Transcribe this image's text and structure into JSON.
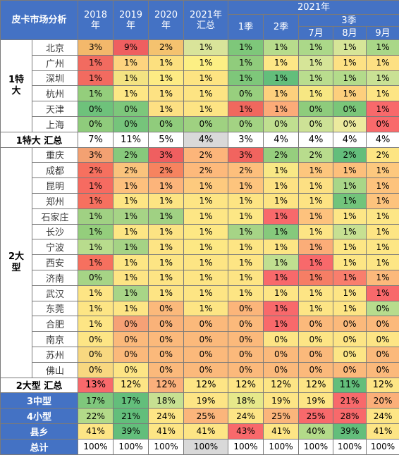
{
  "chart_data": {
    "type": "table",
    "title": "皮卡市场分析",
    "header": {
      "corner": "皮卡市场分析",
      "year_cols": [
        "2018\n年",
        "2019\n年",
        "2020\n年",
        "2021年\n汇总"
      ],
      "group_2021": "2021年",
      "q1": "1季",
      "q2": "2季",
      "q3": "3季",
      "months": [
        "7月",
        "8月",
        "9月"
      ]
    },
    "rows": [
      {
        "group": "1特\n大",
        "group_span": 6,
        "label": "北京",
        "values": [
          "3%",
          "9%",
          "2%",
          "1%",
          "1%",
          "1%",
          "1%",
          "1%",
          "1%"
        ],
        "colors": [
          "#f3b86b",
          "#ef5f60",
          "#f4c26f",
          "#d9e49a",
          "#7ec77a",
          "#b7dc8c",
          "#abd889",
          "#d6e598",
          "#a9d788"
        ]
      },
      {
        "label": "广州",
        "values": [
          "1%",
          "1%",
          "1%",
          "1%",
          "1%",
          "1%",
          "1%",
          "1%",
          "1%"
        ],
        "colors": [
          "#f26b60",
          "#fdd47f",
          "#fce07f",
          "#fcef84",
          "#90cc7c",
          "#fde786",
          "#d6e598",
          "#fde184",
          "#fde083"
        ]
      },
      {
        "label": "深圳",
        "values": [
          "1%",
          "1%",
          "1%",
          "1%",
          "1%",
          "1%",
          "1%",
          "1%",
          "1%"
        ],
        "colors": [
          "#f26b60",
          "#f3e382",
          "#fdeb84",
          "#fde482",
          "#7ec77a",
          "#63be7b",
          "#b9dd8e",
          "#b3db8b",
          "#c9e194"
        ]
      },
      {
        "label": "杭州",
        "values": [
          "1%",
          "1%",
          "1%",
          "1%",
          "0%",
          "1%",
          "1%",
          "1%",
          "1%"
        ],
        "colors": [
          "#94ce7c",
          "#fde785",
          "#fde283",
          "#fde483",
          "#98cf7e",
          "#fdd07d",
          "#f7e783",
          "#fdcf7d",
          "#fde584"
        ]
      },
      {
        "label": "天津",
        "values": [
          "0%",
          "0%",
          "1%",
          "1%",
          "1%",
          "1%",
          "0%",
          "0%",
          "1%"
        ],
        "colors": [
          "#6ec27b",
          "#7dc77b",
          "#fde083",
          "#fde484",
          "#f0685e",
          "#fcab78",
          "#8ecc7c",
          "#7ac679",
          "#f8696b"
        ]
      },
      {
        "label": "上海",
        "values": [
          "0%",
          "0%",
          "0%",
          "0%",
          "0%",
          "0%",
          "0%",
          "0%",
          "0%"
        ],
        "colors": [
          "#8fcc7c",
          "#76c47b",
          "#90cc7c",
          "#9fd181",
          "#a3d383",
          "#c0df90",
          "#cde296",
          "#ecea9e",
          "#f96a6b"
        ]
      },
      {
        "label": "1特大 汇总",
        "sum": true,
        "values": [
          "7%",
          "11%",
          "5%",
          "4%",
          "3%",
          "4%",
          "4%",
          "4%",
          "4%"
        ],
        "colors": [
          "#ffffff",
          "#ffffff",
          "#ffffff",
          "#d9d9d9",
          "#ffffff",
          "#ffffff",
          "#ffffff",
          "#ffffff",
          "#ffffff"
        ]
      },
      {
        "group": "2大\n型",
        "group_span": 15,
        "label": "重庆",
        "values": [
          "3%",
          "2%",
          "3%",
          "2%",
          "3%",
          "2%",
          "2%",
          "2%",
          "2%"
        ],
        "colors": [
          "#f3a172",
          "#87c97c",
          "#ef5f60",
          "#fcb57a",
          "#f1645f",
          "#96ce7e",
          "#b8dc8d",
          "#63be7b",
          "#fde583"
        ]
      },
      {
        "label": "成都",
        "values": [
          "2%",
          "2%",
          "2%",
          "2%",
          "2%",
          "1%",
          "1%",
          "1%",
          "1%"
        ],
        "colors": [
          "#f6705f",
          "#fac37c",
          "#f6835f",
          "#fdb97b",
          "#fdbf7c",
          "#f9e885",
          "#fdc67d",
          "#fdbf7b",
          "#fdc87e"
        ]
      },
      {
        "label": "昆明",
        "values": [
          "1%",
          "1%",
          "1%",
          "1%",
          "1%",
          "1%",
          "1%",
          "1%",
          "1%"
        ],
        "colors": [
          "#f66b61",
          "#fdc07d",
          "#fcb47a",
          "#fdca7e",
          "#fdc47d",
          "#fde283",
          "#fde083",
          "#a9d688",
          "#fdc37d"
        ]
      },
      {
        "label": "郑州",
        "values": [
          "1%",
          "1%",
          "1%",
          "1%",
          "1%",
          "1%",
          "1%",
          "1%",
          "1%"
        ],
        "colors": [
          "#f6705f",
          "#fde684",
          "#fde483",
          "#fde584",
          "#fde483",
          "#fde483",
          "#fde383",
          "#72c47b",
          "#fdc37d"
        ]
      },
      {
        "label": "石家庄",
        "values": [
          "1%",
          "1%",
          "1%",
          "1%",
          "1%",
          "1%",
          "1%",
          "1%",
          "1%"
        ],
        "colors": [
          "#a0d183",
          "#a6d486",
          "#a0d183",
          "#fde685",
          "#fde785",
          "#f8696b",
          "#fdc27d",
          "#fde686",
          "#fde686"
        ]
      },
      {
        "label": "长沙",
        "values": [
          "1%",
          "1%",
          "1%",
          "1%",
          "1%",
          "1%",
          "1%",
          "1%",
          "1%"
        ],
        "colors": [
          "#94ce7c",
          "#fde684",
          "#fce383",
          "#fde884",
          "#a6d486",
          "#86c97c",
          "#fde585",
          "#c7e092",
          "#fde584"
        ]
      },
      {
        "label": "宁波",
        "values": [
          "1%",
          "1%",
          "1%",
          "1%",
          "1%",
          "1%",
          "1%",
          "1%",
          "1%"
        ],
        "colors": [
          "#b8dc8d",
          "#a5d385",
          "#fde484",
          "#fde884",
          "#fde584",
          "#fde584",
          "#fbad78",
          "#fde685",
          "#fde685"
        ]
      },
      {
        "label": "西安",
        "values": [
          "1%",
          "1%",
          "1%",
          "1%",
          "1%",
          "1%",
          "1%",
          "1%",
          "1%"
        ],
        "colors": [
          "#f6705f",
          "#fde684",
          "#fde584",
          "#fde584",
          "#fde584",
          "#c0df90",
          "#f8696b",
          "#fde685",
          "#fde685"
        ]
      },
      {
        "label": "济南",
        "values": [
          "0%",
          "1%",
          "1%",
          "1%",
          "1%",
          "1%",
          "1%",
          "1%",
          "1%"
        ],
        "colors": [
          "#a6d486",
          "#fde484",
          "#fde484",
          "#fde584",
          "#fde484",
          "#f8696b",
          "#f67e65",
          "#f97e6d",
          "#fcb97b"
        ]
      },
      {
        "label": "武汉",
        "values": [
          "1%",
          "1%",
          "1%",
          "1%",
          "1%",
          "1%",
          "1%",
          "1%",
          "1%"
        ],
        "colors": [
          "#fde585",
          "#a8d587",
          "#fde484",
          "#fde584",
          "#fde584",
          "#fde585",
          "#fde585",
          "#fde585",
          "#f8696b"
        ]
      },
      {
        "label": "东莞",
        "values": [
          "1%",
          "1%",
          "0%",
          "1%",
          "0%",
          "1%",
          "1%",
          "1%",
          "0%"
        ],
        "colors": [
          "#fde585",
          "#fde585",
          "#fbb97b",
          "#fde584",
          "#fbb57a",
          "#f8696b",
          "#fde585",
          "#fde585",
          "#b7dc8d"
        ]
      },
      {
        "label": "合肥",
        "values": [
          "1%",
          "0%",
          "0%",
          "0%",
          "0%",
          "1%",
          "0%",
          "0%",
          "0%"
        ],
        "colors": [
          "#fde585",
          "#f6a176",
          "#f9b279",
          "#fbb97b",
          "#fbb97b",
          "#f8696b",
          "#fbb97b",
          "#fbb97b",
          "#fbb97b"
        ]
      },
      {
        "label": "南京",
        "values": [
          "0%",
          "0%",
          "0%",
          "0%",
          "0%",
          "0%",
          "0%",
          "0%",
          "0%"
        ],
        "colors": [
          "#fde585",
          "#fbb97b",
          "#fbb97b",
          "#fbb97b",
          "#fbb97b",
          "#fde585",
          "#fde585",
          "#fde585",
          "#fde585"
        ]
      },
      {
        "label": "苏州",
        "values": [
          "0%",
          "0%",
          "0%",
          "0%",
          "0%",
          "0%",
          "0%",
          "0%",
          "0%"
        ],
        "colors": [
          "#f8d880",
          "#fbb97b",
          "#fbb97b",
          "#fbb97b",
          "#fbb97b",
          "#fbb97b",
          "#fbb97b",
          "#fde585",
          "#fbb97b"
        ]
      },
      {
        "label": "佛山",
        "values": [
          "0%",
          "0%",
          "0%",
          "0%",
          "0%",
          "0%",
          "0%",
          "0%",
          "0%"
        ],
        "colors": [
          "#f8d880",
          "#fde585",
          "#fbb97b",
          "#fbb97b",
          "#fbb97b",
          "#fbb97b",
          "#fbb97b",
          "#fbb97b",
          "#fbb97b"
        ]
      },
      {
        "label": "2大型 汇总",
        "sum": true,
        "values": [
          "13%",
          "12%",
          "12%",
          "12%",
          "12%",
          "12%",
          "12%",
          "11%",
          "12%"
        ],
        "colors": [
          "#f8696b",
          "#fde585",
          "#fbb07b",
          "#fde585",
          "#fde585",
          "#fde585",
          "#fde585",
          "#63be7b",
          "#fde585"
        ]
      },
      {
        "label": "3中型",
        "blue": true,
        "values": [
          "17%",
          "17%",
          "18%",
          "19%",
          "18%",
          "19%",
          "19%",
          "21%",
          "20%"
        ],
        "colors": [
          "#7fc77c",
          "#63be7b",
          "#c7e091",
          "#fde585",
          "#e6e88a",
          "#fde585",
          "#fde585",
          "#f8696b",
          "#fbaf79"
        ]
      },
      {
        "label": "4小型",
        "blue": true,
        "values": [
          "22%",
          "21%",
          "24%",
          "25%",
          "24%",
          "25%",
          "25%",
          "28%",
          "24%"
        ],
        "colors": [
          "#b3da89",
          "#63be7b",
          "#fde585",
          "#fbb57b",
          "#fde585",
          "#fbb57b",
          "#f8696b",
          "#f8696b",
          "#fde585"
        ]
      },
      {
        "label": "县乡",
        "blue": true,
        "values": [
          "41%",
          "39%",
          "41%",
          "41%",
          "43%",
          "41%",
          "40%",
          "39%",
          "41%"
        ],
        "colors": [
          "#fde585",
          "#63be7b",
          "#fde585",
          "#fde585",
          "#f8696b",
          "#fde585",
          "#b3da89",
          "#63be7b",
          "#fde585"
        ]
      },
      {
        "label": "总计",
        "blue": true,
        "total": true,
        "values": [
          "100%",
          "100%",
          "100%",
          "100%",
          "100%",
          "100%",
          "100%",
          "100%",
          "100%"
        ],
        "colors": [
          "#ffffff",
          "#ffffff",
          "#ffffff",
          "#d9d9d9",
          "#ffffff",
          "#ffffff",
          "#ffffff",
          "#ffffff",
          "#ffffff"
        ]
      }
    ]
  }
}
